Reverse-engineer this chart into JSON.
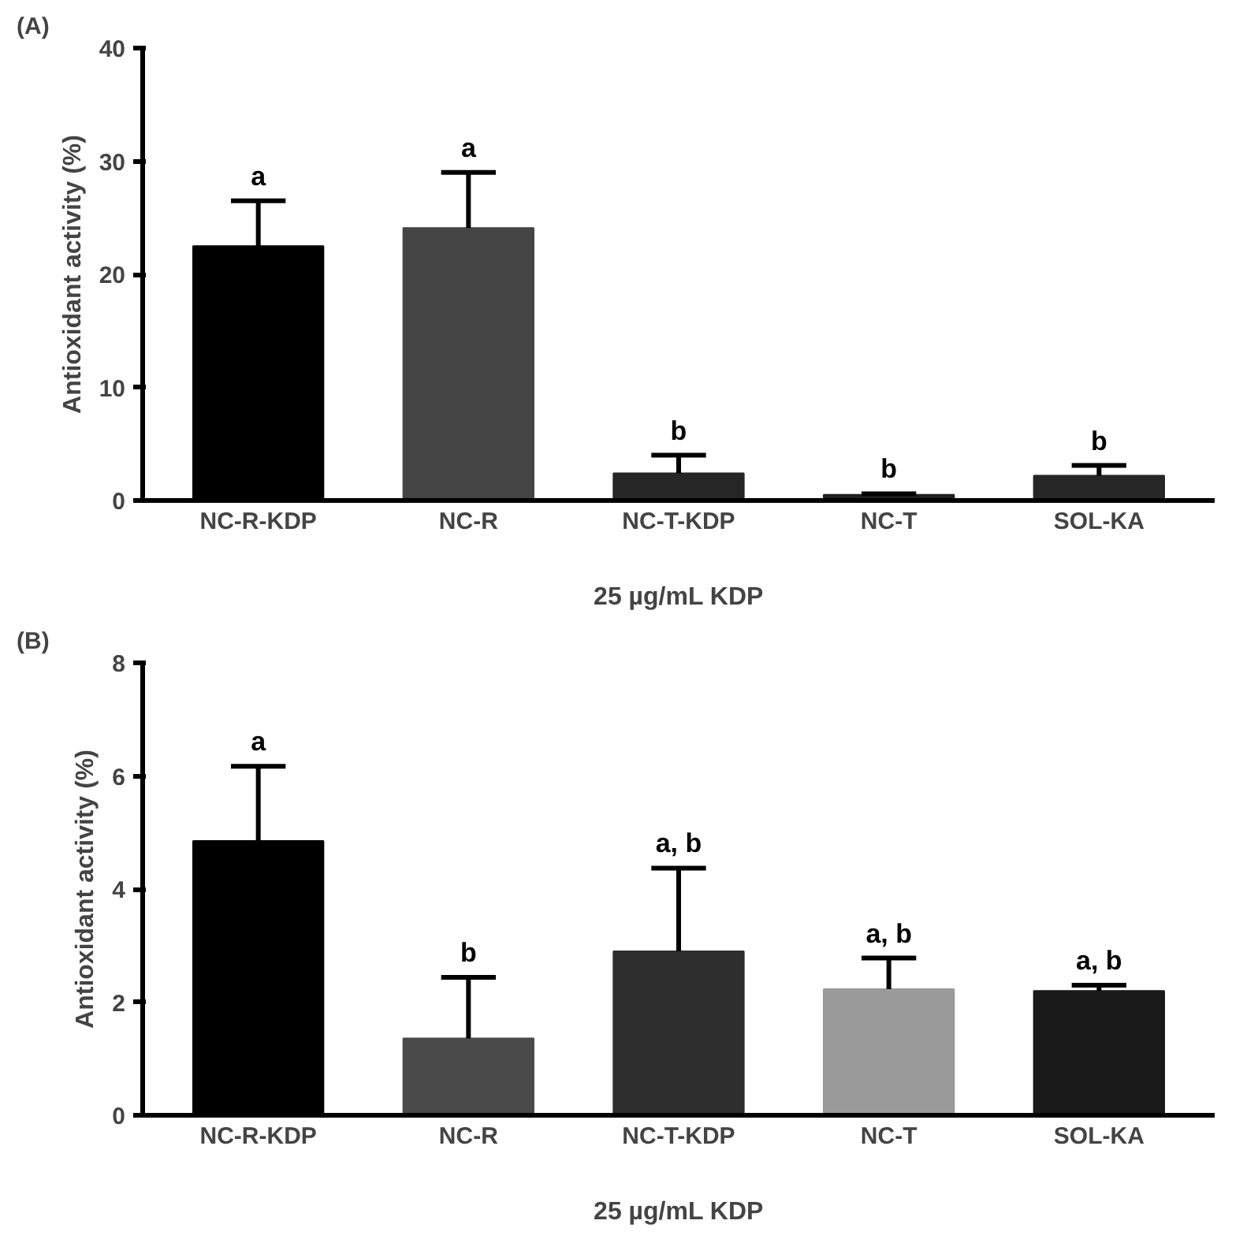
{
  "chart_data": [
    {
      "type": "bar",
      "title": "(A)",
      "xlabel": "25 µg/mL KDP",
      "ylabel": "Antioxidant activity (%)",
      "categories": [
        "NC-R-KDP",
        "NC-R",
        "NC-T-KDP",
        "NC-T",
        "SOL-KA"
      ],
      "values": [
        22.5,
        24.1,
        2.4,
        0.5,
        2.2
      ],
      "colors": [
        "#000000",
        "#454545",
        "#262626",
        "#202020",
        "#262626"
      ],
      "errors": [
        [
          22.5,
          26.5
        ],
        [
          24.1,
          29.0
        ],
        [
          2.4,
          4.0
        ],
        [
          0.5,
          0.6
        ],
        [
          2.2,
          3.1
        ]
      ],
      "ylim": [
        0,
        40
      ],
      "yticks": [
        0,
        10,
        20,
        30,
        40
      ],
      "grid": false,
      "annotations": [
        {
          "text": "a",
          "x": "NC-R-KDP",
          "y": 26.5
        },
        {
          "text": "a",
          "x": "NC-R",
          "y": 29.0
        },
        {
          "text": "b",
          "x": "NC-T-KDP",
          "y": 4.0
        },
        {
          "text": "b",
          "x": "NC-T",
          "y": 0.6
        },
        {
          "text": "b",
          "x": "SOL-KA",
          "y": 3.1
        }
      ]
    },
    {
      "type": "bar",
      "title": "(B)",
      "xlabel": "25 µg/mL KDP",
      "ylabel": "Antioxidant activity (%)",
      "categories": [
        "NC-R-KDP",
        "NC-R",
        "NC-T-KDP",
        "NC-T",
        "SOL-KA"
      ],
      "values": [
        4.85,
        1.36,
        2.9,
        2.23,
        2.2
      ],
      "colors": [
        "#000000",
        "#4a4a4a",
        "#2e2e2e",
        "#9a9a9a",
        "#1a1a1a"
      ],
      "errors": [
        [
          4.85,
          6.17
        ],
        [
          1.36,
          2.44
        ],
        [
          2.9,
          4.37
        ],
        [
          2.23,
          2.78
        ],
        [
          2.2,
          2.3
        ]
      ],
      "ylim": [
        0,
        8
      ],
      "yticks": [
        0,
        2,
        4,
        6,
        8
      ],
      "grid": false,
      "annotations": [
        {
          "text": "a",
          "x": "NC-R-KDP",
          "y": 6.17
        },
        {
          "text": "b",
          "x": "NC-R",
          "y": 2.44
        },
        {
          "text": "a, b",
          "x": "NC-T-KDP",
          "y": 4.37
        },
        {
          "text": "a, b",
          "x": "NC-T",
          "y": 2.78
        },
        {
          "text": "a, b",
          "x": "SOL-KA",
          "y": 2.3
        }
      ]
    }
  ]
}
